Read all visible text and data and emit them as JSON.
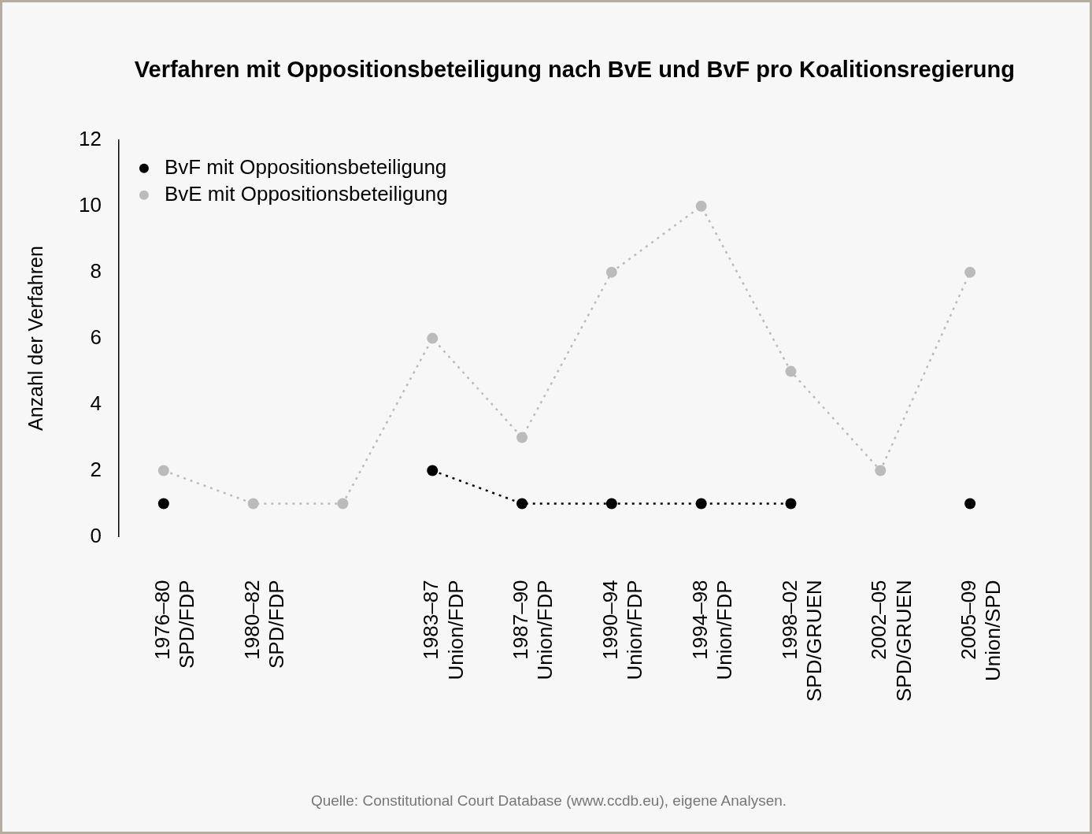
{
  "chart_data": {
    "type": "line",
    "title": "Verfahren mit Oppositionsbeteiligung nach BvE und BvF pro Koalitionsregierung",
    "ylabel": "Anzahl der Verfahren",
    "categories": [
      "1976–80\nSPD/FDP",
      "1980–82\nSPD/FDP",
      null,
      "1983–87\nUnion/FDP",
      "1987–90\nUnion/FDP",
      "1990–94\nUnion/FDP",
      "1994–98\nUnion/FDP",
      "1998–02\nSPD/GRUEN",
      "2002–05\nSPD/GRUEN",
      "2005–09\nUnion/SPD"
    ],
    "ylim": [
      0,
      12
    ],
    "yticks": [
      0,
      2,
      4,
      6,
      8,
      10,
      12
    ],
    "series": [
      {
        "name": "BvF mit Oppositionsbeteiligung",
        "color": "#000000",
        "values": [
          1,
          null,
          null,
          2,
          1,
          1,
          1,
          1,
          null,
          1
        ]
      },
      {
        "name": "BvE mit Oppositionsbeteiligung",
        "color": "#bbbbbb",
        "values": [
          2,
          1,
          1,
          6,
          3,
          8,
          10,
          5,
          2,
          8
        ]
      }
    ],
    "grid": false,
    "legend": "top left",
    "marker": "circle",
    "line_style": "dotted",
    "annotations": [
      "Quelle: Constitutional Court Database (www.ccdb.eu), eigene Analysen."
    ]
  }
}
